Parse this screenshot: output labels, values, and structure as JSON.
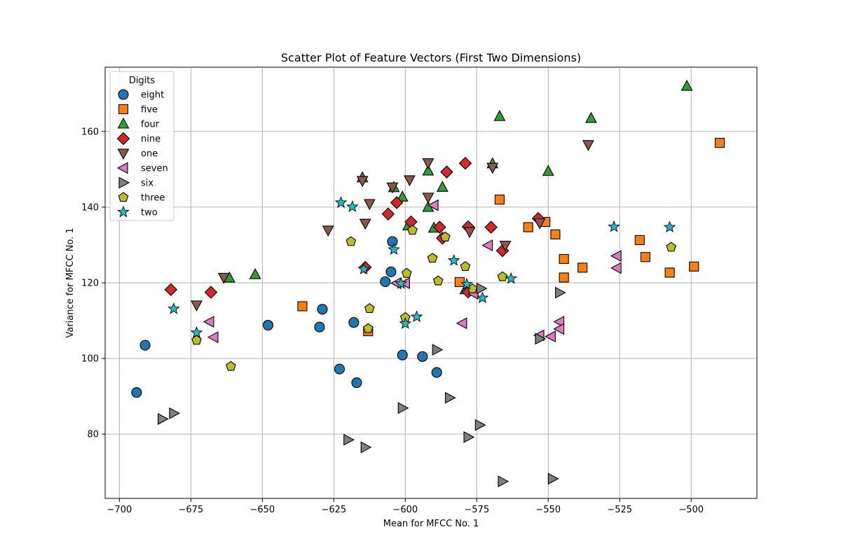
{
  "chart_data": {
    "type": "scatter",
    "title": "Scatter Plot of Feature Vectors (First Two Dimensions)",
    "xlabel": "Mean for MFCC No. 1",
    "ylabel": "Variance for MFCC No. 1",
    "xlim": [
      -705,
      -477
    ],
    "ylim": [
      63,
      177
    ],
    "xticks": [
      -700,
      -675,
      -650,
      -625,
      -600,
      -575,
      -550,
      -525,
      -500
    ],
    "yticks": [
      80,
      100,
      120,
      140,
      160
    ],
    "grid": true,
    "legend": {
      "title": "Digits",
      "position": "top-left"
    },
    "series": [
      {
        "name": "eight",
        "color": "#1f77b4",
        "marker": "circle",
        "points": [
          [
            -694,
            91
          ],
          [
            -691,
            103.5
          ],
          [
            -648,
            108.8
          ],
          [
            -630,
            108.3
          ],
          [
            -629,
            113
          ],
          [
            -623,
            97.2
          ],
          [
            -618,
            109.5
          ],
          [
            -617,
            93.6
          ],
          [
            -607,
            120.3
          ],
          [
            -605,
            122.9
          ],
          [
            -604.5,
            130.9
          ],
          [
            -601,
            100.9
          ],
          [
            -594,
            100.5
          ],
          [
            -589,
            96.3
          ]
        ]
      },
      {
        "name": "five",
        "color": "#ff7f0e",
        "marker": "square",
        "points": [
          [
            -636,
            113.8
          ],
          [
            -613,
            107.2
          ],
          [
            -581,
            120.2
          ],
          [
            -567,
            142
          ],
          [
            -557,
            134.7
          ],
          [
            -551,
            136.1
          ],
          [
            -547.5,
            132.8
          ],
          [
            -544.5,
            126.3
          ],
          [
            -544.5,
            121.4
          ],
          [
            -538,
            124
          ],
          [
            -518,
            131.3
          ],
          [
            -516,
            126.8
          ],
          [
            -507.5,
            122.7
          ],
          [
            -499,
            124.3
          ],
          [
            -490,
            157
          ]
        ]
      },
      {
        "name": "four",
        "color": "#2ca02c",
        "marker": "triangle-up",
        "points": [
          [
            -661.5,
            121.3
          ],
          [
            -652.5,
            122.2
          ],
          [
            -615,
            147.8
          ],
          [
            -604,
            145.2
          ],
          [
            -601,
            142.7
          ],
          [
            -599,
            135.1
          ],
          [
            -592,
            149.6
          ],
          [
            -592,
            140
          ],
          [
            -590,
            134.5
          ],
          [
            -587,
            145.3
          ],
          [
            -579,
            118.2
          ],
          [
            -569.5,
            151.5
          ],
          [
            -567,
            164
          ],
          [
            -550,
            149.5
          ],
          [
            -535,
            163.5
          ],
          [
            -501.5,
            172
          ]
        ]
      },
      {
        "name": "nine",
        "color": "#d62728",
        "marker": "diamond",
        "points": [
          [
            -682,
            118.2
          ],
          [
            -668,
            117.5
          ],
          [
            -614,
            124.1
          ],
          [
            -606,
            138.2
          ],
          [
            -603,
            141.2
          ],
          [
            -598,
            136.1
          ],
          [
            -588,
            134.7
          ],
          [
            -587,
            131.8
          ],
          [
            -585.5,
            149.3
          ],
          [
            -579,
            151.6
          ],
          [
            -578,
            134.8
          ],
          [
            -578,
            117.6
          ],
          [
            -570,
            134.7
          ],
          [
            -566,
            128.5
          ],
          [
            -553.5,
            137
          ]
        ]
      },
      {
        "name": "one",
        "color": "#8c564b",
        "marker": "triangle-down",
        "points": [
          [
            -673,
            114.1
          ],
          [
            -663.5,
            121.4
          ],
          [
            -627,
            133.9
          ],
          [
            -615,
            147
          ],
          [
            -614,
            135.7
          ],
          [
            -612.5,
            140.9
          ],
          [
            -604.5,
            145.3
          ],
          [
            -598.5,
            147.2
          ],
          [
            -592,
            151.7
          ],
          [
            -592,
            142.6
          ],
          [
            -577.5,
            133.5
          ],
          [
            -569.5,
            150.5
          ],
          [
            -565,
            129.9
          ],
          [
            -553,
            135.8
          ],
          [
            -536,
            156.5
          ]
        ]
      },
      {
        "name": "seven",
        "color": "#e377c2",
        "marker": "triangle-left",
        "points": [
          [
            -668.5,
            109.7
          ],
          [
            -667,
            105.6
          ],
          [
            -603,
            119.9
          ],
          [
            -600,
            119.9
          ],
          [
            -590,
            140.5
          ],
          [
            -580,
            109.3
          ],
          [
            -576,
            117.1
          ],
          [
            -571,
            129.9
          ],
          [
            -553,
            106.1
          ],
          [
            -549,
            105.8
          ],
          [
            -546,
            109.7
          ],
          [
            -546,
            107.8
          ],
          [
            -526,
            127.1
          ],
          [
            -526,
            123.9
          ]
        ]
      },
      {
        "name": "six",
        "color": "#7f7f7f",
        "marker": "triangle-right",
        "points": [
          [
            -685,
            84
          ],
          [
            -681,
            85.5
          ],
          [
            -620,
            78.5
          ],
          [
            -614,
            76.5
          ],
          [
            -601,
            86.9
          ],
          [
            -589,
            102.3
          ],
          [
            -584.5,
            89.6
          ],
          [
            -578,
            79.2
          ],
          [
            -574,
            82.4
          ],
          [
            -573.5,
            118.5
          ],
          [
            -566,
            67.5
          ],
          [
            -553,
            105.2
          ],
          [
            -546,
            117.4
          ],
          [
            -548.5,
            68.2
          ]
        ]
      },
      {
        "name": "three",
        "color": "#bcbd22",
        "marker": "pentagon",
        "points": [
          [
            -673,
            104.8
          ],
          [
            -661,
            97.9
          ],
          [
            -619,
            130.9
          ],
          [
            -613,
            107.9
          ],
          [
            -612.5,
            113.2
          ],
          [
            -600,
            110.8
          ],
          [
            -599.5,
            122.5
          ],
          [
            -597.5,
            133.9
          ],
          [
            -590.5,
            126.5
          ],
          [
            -588.5,
            120.5
          ],
          [
            -586,
            132.1
          ],
          [
            -579,
            124.3
          ],
          [
            -576.5,
            118.4
          ],
          [
            -566,
            121.6
          ],
          [
            -507,
            129.4
          ]
        ]
      },
      {
        "name": "two",
        "color": "#17becf",
        "marker": "star",
        "points": [
          [
            -681,
            113.1
          ],
          [
            -673,
            106.8
          ],
          [
            -622.5,
            141.2
          ],
          [
            -618.5,
            140.1
          ],
          [
            -614.5,
            123.6
          ],
          [
            -604,
            128.8
          ],
          [
            -601.5,
            119.8
          ],
          [
            -600,
            109.2
          ],
          [
            -596,
            111
          ],
          [
            -583,
            125.9
          ],
          [
            -578.5,
            119.6
          ],
          [
            -573,
            116
          ],
          [
            -563,
            121.1
          ],
          [
            -527,
            134.8
          ],
          [
            -507.5,
            134.7
          ]
        ]
      }
    ]
  }
}
